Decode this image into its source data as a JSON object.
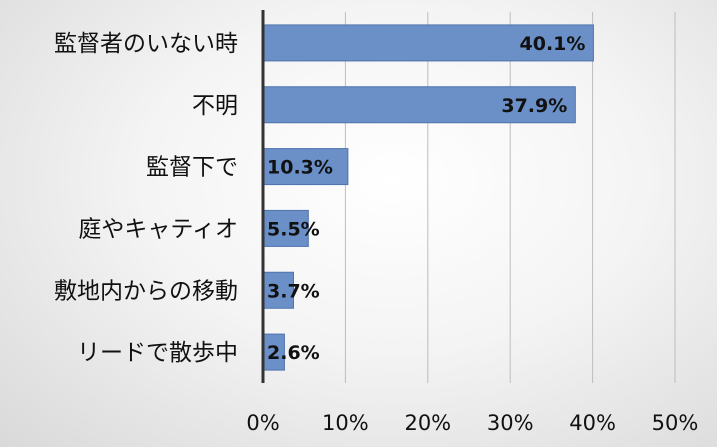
{
  "chart_data": {
    "type": "bar",
    "orientation": "horizontal",
    "categories": [
      "監督者のいない時",
      "不明",
      "監督下で",
      "庭やキャティオ",
      "敷地内からの移動",
      "リードで散歩中"
    ],
    "values": [
      40.1,
      37.9,
      10.3,
      5.5,
      3.7,
      2.6
    ],
    "data_labels": [
      "40.1%",
      "37.9%",
      "10.3%",
      "5.5%",
      "3.7%",
      "2.6%"
    ],
    "xticks": [
      "0%",
      "10%",
      "20%",
      "30%",
      "40%",
      "50%"
    ],
    "xlim": [
      0,
      50
    ],
    "grid": true,
    "bar_color": "#6b8fc7",
    "bar_edge_color": "#4f74ad"
  }
}
